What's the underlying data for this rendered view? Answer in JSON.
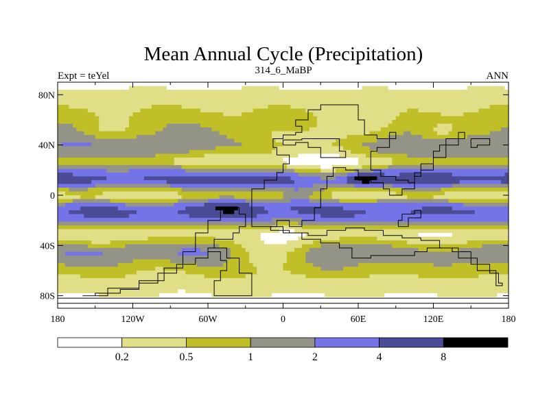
{
  "chart_data": {
    "type": "heatmap",
    "title": "Mean Annual Cycle (Precipitation)",
    "subtitle_left": "Expt = teYel",
    "subtitle_center": "314_6_MaBP",
    "subtitle_right": "ANN",
    "x_ticks": [
      {
        "value": -180,
        "label": "180"
      },
      {
        "value": -120,
        "label": "120W"
      },
      {
        "value": -60,
        "label": "60W"
      },
      {
        "value": 0,
        "label": "0"
      },
      {
        "value": 60,
        "label": "60E"
      },
      {
        "value": 120,
        "label": "120E"
      },
      {
        "value": 180,
        "label": "180"
      }
    ],
    "y_ticks": [
      {
        "value": 80,
        "label": "80N"
      },
      {
        "value": 40,
        "label": "40N"
      },
      {
        "value": 0,
        "label": "0"
      },
      {
        "value": -40,
        "label": "40S"
      },
      {
        "value": -80,
        "label": "80S"
      }
    ],
    "xlim": [
      -180,
      180
    ],
    "ylim": [
      -90,
      90
    ],
    "levels": [
      0.2,
      0.5,
      1,
      2,
      4,
      8
    ],
    "level_labels": [
      "0.2",
      "0.5",
      "1",
      "2",
      "4",
      "8"
    ],
    "colors": [
      "#ffffff",
      "#e0df88",
      "#c0bf28",
      "#949387",
      "#7474e8",
      "#4b4b96",
      "#000000"
    ],
    "coast_color": "#000000",
    "zonal_profile": [
      {
        "lat": 90,
        "value": 0.15
      },
      {
        "lat": 85,
        "value": 0.2
      },
      {
        "lat": 80,
        "value": 0.25
      },
      {
        "lat": 75,
        "value": 0.35
      },
      {
        "lat": 70,
        "value": 0.45
      },
      {
        "lat": 65,
        "value": 0.6
      },
      {
        "lat": 60,
        "value": 0.75
      },
      {
        "lat": 55,
        "value": 0.9
      },
      {
        "lat": 50,
        "value": 1.1
      },
      {
        "lat": 45,
        "value": 1.5
      },
      {
        "lat": 40,
        "value": 2.1
      },
      {
        "lat": 35,
        "value": 1.6
      },
      {
        "lat": 30,
        "value": 0.9
      },
      {
        "lat": 27,
        "value": 0.4
      },
      {
        "lat": 22,
        "value": 1.3
      },
      {
        "lat": 18,
        "value": 3
      },
      {
        "lat": 14,
        "value": 4.5
      },
      {
        "lat": 10,
        "value": 3.5
      },
      {
        "lat": 6,
        "value": 1.2
      },
      {
        "lat": 2,
        "value": 0.45
      },
      {
        "lat": -2,
        "value": 0.4
      },
      {
        "lat": -6,
        "value": 1.5
      },
      {
        "lat": -10,
        "value": 3.5
      },
      {
        "lat": -14,
        "value": 4.4
      },
      {
        "lat": -18,
        "value": 3.5
      },
      {
        "lat": -22,
        "value": 1.8
      },
      {
        "lat": -26,
        "value": 0.8
      },
      {
        "lat": -30,
        "value": 0.35
      },
      {
        "lat": -35,
        "value": 0.6
      },
      {
        "lat": -40,
        "value": 1.3
      },
      {
        "lat": -45,
        "value": 2.2
      },
      {
        "lat": -50,
        "value": 1.6
      },
      {
        "lat": -55,
        "value": 1.1
      },
      {
        "lat": -60,
        "value": 0.8
      },
      {
        "lat": -65,
        "value": 0.5
      },
      {
        "lat": -70,
        "value": 0.3
      },
      {
        "lat": -75,
        "value": 0.25
      },
      {
        "lat": -80,
        "value": 0.2
      },
      {
        "lat": -85,
        "value": 0.15
      },
      {
        "lat": -90,
        "value": 0.1
      }
    ],
    "anomalies": [
      {
        "lon": 15,
        "lat": 42,
        "w": 40,
        "h": 14,
        "factor": 0.25
      },
      {
        "lon": 35,
        "lat": 25,
        "w": 35,
        "h": 14,
        "factor": 0.2
      },
      {
        "lon": 65,
        "lat": 60,
        "w": 30,
        "h": 12,
        "factor": 0.35
      },
      {
        "lon": -50,
        "lat": 30,
        "w": 30,
        "h": 12,
        "factor": 0.4
      },
      {
        "lon": -140,
        "lat": 52,
        "w": 20,
        "h": 10,
        "factor": 0.45
      },
      {
        "lon": 125,
        "lat": 50,
        "w": 18,
        "h": 8,
        "factor": 0.4
      },
      {
        "lon": 68,
        "lat": 13,
        "w": 12,
        "h": 6,
        "factor": 3.5
      },
      {
        "lon": 55,
        "lat": 12,
        "w": 10,
        "h": 5,
        "factor": 2.2
      },
      {
        "lon": -25,
        "lat": 12,
        "w": 25,
        "h": 6,
        "factor": 1.6
      },
      {
        "lon": 130,
        "lat": 13,
        "w": 30,
        "h": 8,
        "factor": 1.4
      },
      {
        "lon": -40,
        "lat": -5,
        "w": 25,
        "h": 10,
        "factor": 3
      },
      {
        "lon": 10,
        "lat": 0,
        "w": 20,
        "h": 8,
        "factor": 3
      },
      {
        "lon": 5,
        "lat": -35,
        "w": 25,
        "h": 15,
        "factor": 0.4
      },
      {
        "lon": -15,
        "lat": -45,
        "w": 30,
        "h": 12,
        "factor": 0.25
      },
      {
        "lon": 120,
        "lat": -38,
        "w": 30,
        "h": 15,
        "factor": 0.35
      },
      {
        "lon": -150,
        "lat": -35,
        "w": 30,
        "h": 8,
        "factor": 0.5
      },
      {
        "lon": 80,
        "lat": -5,
        "w": 20,
        "h": 6,
        "factor": 1.4
      },
      {
        "lon": -100,
        "lat": -60,
        "w": 40,
        "h": 10,
        "factor": 0.7
      }
    ],
    "coastlines": [
      [
        [
          -25,
          -20
        ],
        [
          -25,
          5
        ],
        [
          -15,
          12
        ],
        [
          -5,
          18
        ],
        [
          0,
          25
        ],
        [
          5,
          32
        ],
        [
          -5,
          38
        ],
        [
          -8,
          45
        ],
        [
          0,
          48
        ],
        [
          10,
          50
        ],
        [
          15,
          55
        ],
        [
          10,
          60
        ],
        [
          20,
          68
        ],
        [
          30,
          72
        ],
        [
          45,
          72
        ],
        [
          60,
          70
        ],
        [
          60,
          60
        ],
        [
          65,
          48
        ],
        [
          75,
          45
        ],
        [
          85,
          50
        ],
        [
          90,
          45
        ],
        [
          85,
          38
        ],
        [
          75,
          35
        ],
        [
          70,
          30
        ],
        [
          70,
          20
        ],
        [
          78,
          15
        ],
        [
          90,
          12
        ],
        [
          100,
          10
        ],
        [
          105,
          18
        ],
        [
          110,
          20
        ],
        [
          120,
          30
        ],
        [
          130,
          45
        ],
        [
          145,
          50
        ],
        [
          140,
          40
        ],
        [
          125,
          35
        ],
        [
          120,
          25
        ],
        [
          110,
          15
        ],
        [
          105,
          5
        ],
        [
          95,
          0
        ],
        [
          85,
          5
        ],
        [
          80,
          10
        ],
        [
          70,
          12
        ],
        [
          60,
          20
        ],
        [
          50,
          22
        ],
        [
          40,
          15
        ],
        [
          35,
          5
        ],
        [
          30,
          -10
        ],
        [
          25,
          -20
        ],
        [
          15,
          -25
        ],
        [
          5,
          -20
        ],
        [
          -5,
          -25
        ],
        [
          -15,
          -25
        ],
        [
          -25,
          -20
        ]
      ],
      [
        [
          -10,
          -25
        ],
        [
          0,
          -30
        ],
        [
          15,
          -35
        ],
        [
          30,
          -38
        ],
        [
          45,
          -42
        ],
        [
          55,
          -50
        ],
        [
          70,
          -48
        ],
        [
          90,
          -48
        ],
        [
          105,
          -45
        ],
        [
          115,
          -42
        ],
        [
          125,
          -42
        ],
        [
          135,
          -45
        ],
        [
          150,
          -55
        ],
        [
          165,
          -62
        ],
        [
          172,
          -70
        ],
        [
          175,
          -72
        ],
        [
          170,
          -60
        ],
        [
          155,
          -50
        ],
        [
          140,
          -42
        ],
        [
          125,
          -36
        ],
        [
          110,
          -34
        ],
        [
          95,
          -32
        ],
        [
          80,
          -28
        ],
        [
          65,
          -26
        ],
        [
          50,
          -28
        ],
        [
          35,
          -32
        ],
        [
          20,
          -30
        ],
        [
          5,
          -28
        ],
        [
          -10,
          -25
        ]
      ],
      [
        [
          -50,
          -10
        ],
        [
          -35,
          -15
        ],
        [
          -30,
          -25
        ],
        [
          -35,
          -30
        ],
        [
          -40,
          -35
        ],
        [
          -55,
          -42
        ],
        [
          -60,
          -50
        ],
        [
          -70,
          -55
        ],
        [
          -85,
          -62
        ],
        [
          -100,
          -70
        ],
        [
          -115,
          -75
        ],
        [
          -130,
          -78
        ],
        [
          -150,
          -80
        ],
        [
          -160,
          -80
        ],
        [
          -140,
          -74
        ],
        [
          -115,
          -68
        ],
        [
          -95,
          -58
        ],
        [
          -80,
          -45
        ],
        [
          -70,
          -30
        ],
        [
          -60,
          -20
        ],
        [
          -50,
          -10
        ]
      ],
      [
        [
          -60,
          -45
        ],
        [
          -50,
          -52
        ],
        [
          -45,
          -60
        ],
        [
          -50,
          -68
        ],
        [
          -55,
          -80
        ],
        [
          -35,
          -80
        ],
        [
          -25,
          -62
        ],
        [
          -35,
          -50
        ],
        [
          -45,
          -42
        ],
        [
          -60,
          -45
        ]
      ],
      [
        [
          -180,
          -82
        ],
        [
          180,
          -82
        ]
      ],
      [
        [
          -180,
          -86
        ],
        [
          180,
          -86
        ]
      ],
      [
        [
          0,
          40
        ],
        [
          10,
          42
        ],
        [
          20,
          38
        ],
        [
          30,
          30
        ],
        [
          40,
          30
        ],
        [
          50,
          35
        ],
        [
          45,
          45
        ],
        [
          30,
          45
        ],
        [
          15,
          44
        ],
        [
          0,
          40
        ]
      ],
      [
        [
          95,
          -15
        ],
        [
          105,
          -12
        ],
        [
          110,
          -18
        ],
        [
          100,
          -25
        ],
        [
          92,
          -20
        ],
        [
          95,
          -15
        ]
      ],
      [
        [
          150,
          45
        ],
        [
          160,
          45
        ],
        [
          165,
          40
        ],
        [
          155,
          38
        ],
        [
          150,
          45
        ]
      ]
    ]
  }
}
